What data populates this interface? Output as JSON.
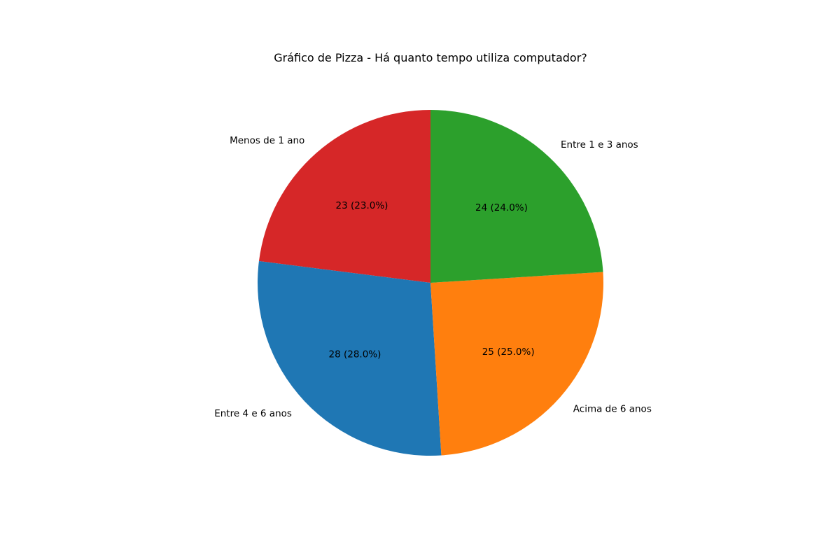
{
  "chart_data": {
    "type": "pie",
    "title": "Gráfico de Pizza - Há quanto tempo utiliza computador?",
    "categories": [
      "Menos de 1 ano",
      "Entre 4 e 6 anos",
      "Acima de 6 anos",
      "Entre 1 e 3 anos"
    ],
    "values": [
      23,
      28,
      25,
      24
    ],
    "value_labels": [
      "23 (23.0%)",
      "28 (28.0%)",
      "25 (25.0%)",
      "24 (24.0%)"
    ],
    "colors": [
      "#d62728",
      "#1f77b4",
      "#ff7f0e",
      "#2ca02c"
    ],
    "start_angle_deg": 90,
    "direction": "counterclockwise",
    "legend": "none"
  }
}
